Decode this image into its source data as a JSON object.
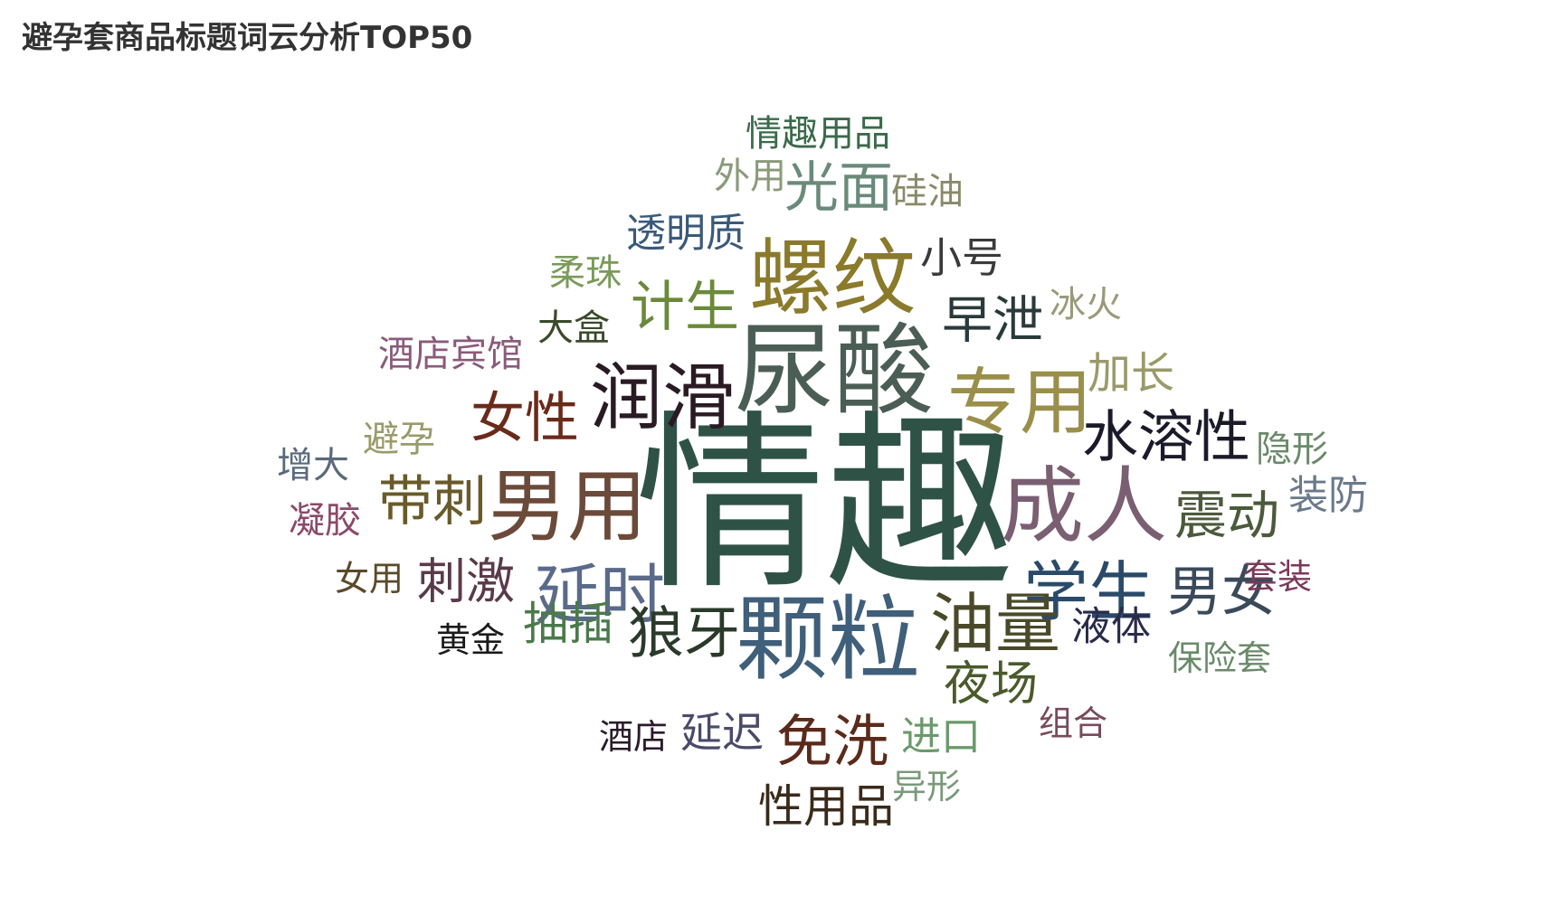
{
  "chart_data": {
    "type": "wordcloud",
    "title": "避孕套商品标题词云分析TOP50",
    "words": [
      {
        "text": "情趣",
        "weight": 100,
        "color": "#2f5246"
      },
      {
        "text": "尿酸",
        "weight": 60,
        "color": "#4b5e55"
      },
      {
        "text": "螺纹",
        "weight": 50,
        "color": "#8a7a2a"
      },
      {
        "text": "颗粒",
        "weight": 54,
        "color": "#3f5f7a"
      },
      {
        "text": "成人",
        "weight": 50,
        "color": "#7a5f72"
      },
      {
        "text": "男用",
        "weight": 48,
        "color": "#6b4a3a"
      },
      {
        "text": "专用",
        "weight": 44,
        "color": "#9a8f4a"
      },
      {
        "text": "润滑",
        "weight": 42,
        "color": "#2a1a24"
      },
      {
        "text": "延时",
        "weight": 40,
        "color": "#5a6a8a"
      },
      {
        "text": "学生",
        "weight": 40,
        "color": "#2a4a6a"
      },
      {
        "text": "油量",
        "weight": 38,
        "color": "#4a4a2a"
      },
      {
        "text": "男女",
        "weight": 34,
        "color": "#3a4a5a"
      },
      {
        "text": "女性",
        "weight": 32,
        "color": "#6a2a1a"
      },
      {
        "text": "带刺",
        "weight": 32,
        "color": "#6a5a2a"
      },
      {
        "text": "水溶性",
        "weight": 32,
        "color": "#1a1a2a"
      },
      {
        "text": "震动",
        "weight": 32,
        "color": "#4a5a3a"
      },
      {
        "text": "狼牙",
        "weight": 32,
        "color": "#2a3a2a"
      },
      {
        "text": "光面",
        "weight": 30,
        "color": "#6a8a7a"
      },
      {
        "text": "计生",
        "weight": 30,
        "color": "#6a8a3a"
      },
      {
        "text": "免洗",
        "weight": 30,
        "color": "#5a2a1a"
      },
      {
        "text": "早泄",
        "weight": 28,
        "color": "#2a3a3a"
      },
      {
        "text": "刺激",
        "weight": 26,
        "color": "#5a3a4a"
      },
      {
        "text": "夜场",
        "weight": 26,
        "color": "#4a5a2a"
      },
      {
        "text": "抽插",
        "weight": 24,
        "color": "#4a7a4a"
      },
      {
        "text": "加长",
        "weight": 24,
        "color": "#9a9a6a"
      },
      {
        "text": "小号",
        "weight": 24,
        "color": "#3a3a3a"
      },
      {
        "text": "延迟",
        "weight": 22,
        "color": "#4a4a6a"
      },
      {
        "text": "液体",
        "weight": 22,
        "color": "#2a2a4a"
      },
      {
        "text": "透明质",
        "weight": 22,
        "color": "#3a5a7a"
      },
      {
        "text": "进口",
        "weight": 22,
        "color": "#6a9a6a"
      },
      {
        "text": "装防",
        "weight": 22,
        "color": "#6a7a8a"
      },
      {
        "text": "性用品",
        "weight": 22,
        "color": "#3a2a1a"
      },
      {
        "text": "情趣用品",
        "weight": 20,
        "color": "#3a6a4a"
      },
      {
        "text": "酒店宾馆",
        "weight": 20,
        "color": "#8a5a7a"
      },
      {
        "text": "硅油",
        "weight": 20,
        "color": "#8a8a6a"
      },
      {
        "text": "外用",
        "weight": 20,
        "color": "#8a9a7a"
      },
      {
        "text": "冰火",
        "weight": 20,
        "color": "#9a9a7a"
      },
      {
        "text": "大盒",
        "weight": 20,
        "color": "#3a4a2a"
      },
      {
        "text": "柔珠",
        "weight": 20,
        "color": "#7a9a5a"
      },
      {
        "text": "隐形",
        "weight": 20,
        "color": "#6a8a6a"
      },
      {
        "text": "避孕",
        "weight": 20,
        "color": "#9a9a6a"
      },
      {
        "text": "增大",
        "weight": 20,
        "color": "#5a6a7a"
      },
      {
        "text": "凝胶",
        "weight": 20,
        "color": "#8a4a6a"
      },
      {
        "text": "女用",
        "weight": 18,
        "color": "#5a4a2a"
      },
      {
        "text": "套装",
        "weight": 18,
        "color": "#7a3a5a"
      },
      {
        "text": "黄金",
        "weight": 18,
        "color": "#1a1a1a"
      },
      {
        "text": "保险套",
        "weight": 18,
        "color": "#6a8a6a"
      },
      {
        "text": "组合",
        "weight": 18,
        "color": "#7a4a5a"
      },
      {
        "text": "酒店",
        "weight": 18,
        "color": "#2a1a2a"
      },
      {
        "text": "异形",
        "weight": 18,
        "color": "#7a9a7a"
      }
    ]
  }
}
